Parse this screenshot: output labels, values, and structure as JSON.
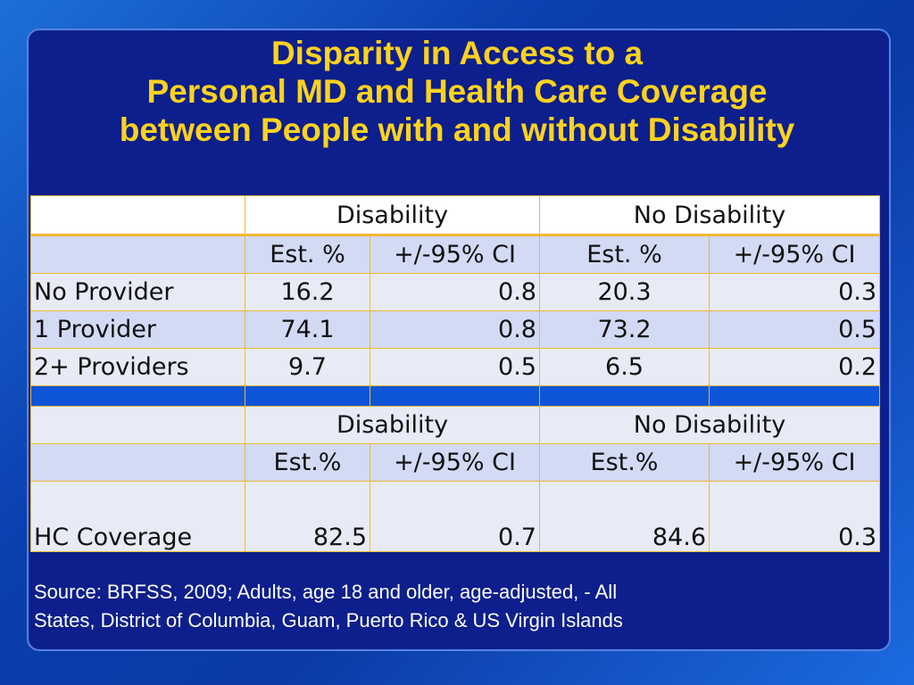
{
  "title": {
    "line1": "Disparity in Access to a",
    "line2": "Personal MD and Health Care Coverage",
    "line3": "between People with and without Disability"
  },
  "table1": {
    "group_headers": [
      "Disability",
      "No Disability"
    ],
    "sub_headers": [
      "Est. %",
      "+/-95% CI",
      "Est. %",
      "+/-95% CI"
    ],
    "rows": [
      {
        "label": "No Provider",
        "values": [
          "16.2",
          "0.8",
          "20.3",
          "0.3"
        ]
      },
      {
        "label": "1 Provider",
        "values": [
          "74.1",
          "0.8",
          "73.2",
          "0.5"
        ]
      },
      {
        "label": "2+ Providers",
        "values": [
          "9.7",
          "0.5",
          "6.5",
          "0.2"
        ]
      }
    ]
  },
  "table2": {
    "group_headers": [
      "Disability",
      "No Disability"
    ],
    "sub_headers": [
      "Est.%",
      "+/-95% CI",
      "Est.%",
      "+/-95% CI"
    ],
    "rows": [
      {
        "label": "HC Coverage",
        "values": [
          "82.5",
          "0.7",
          "84.6",
          "0.3"
        ]
      }
    ]
  },
  "source": {
    "line1": "Source:  BRFSS, 2009; Adults, age 18 and older, age-adjusted, - All",
    "line2": "States, District of Columbia, Guam, Puerto Rico & US Virgin Islands"
  },
  "colors": {
    "title": "#ffd21e",
    "panel": "#0d1f8c",
    "table_border": "#f0b833",
    "separator_row": "#0b55d6"
  }
}
